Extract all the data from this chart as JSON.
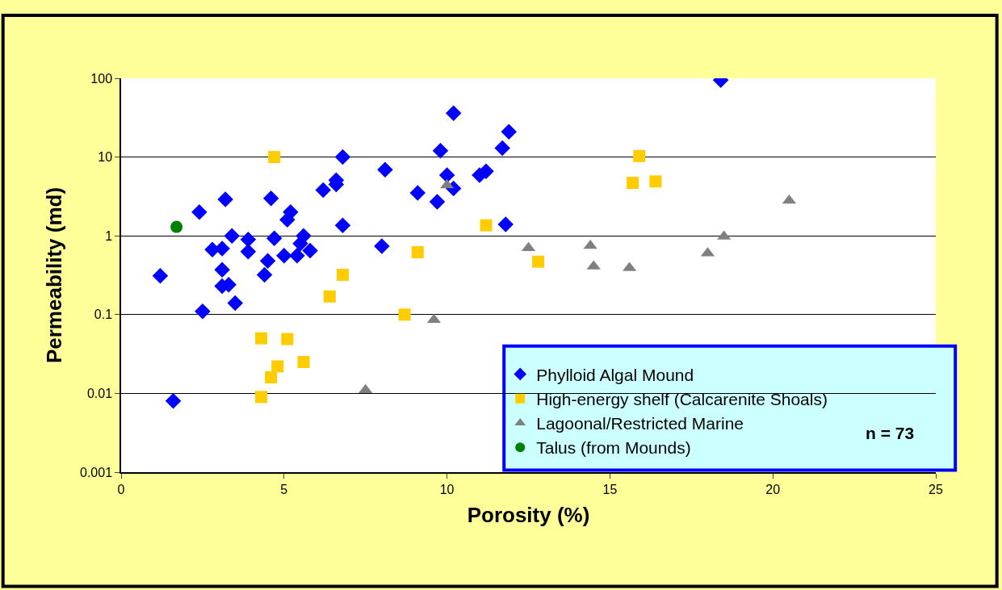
{
  "chart_data": {
    "type": "scatter",
    "xlabel": "Porosity (%)",
    "ylabel": "Permeability (md)",
    "log": "y",
    "xlim": [
      0,
      25
    ],
    "xticks": [
      0,
      5,
      10,
      15,
      20,
      25
    ],
    "ylim": [
      0.001,
      100
    ],
    "yticks": [
      0.001,
      0.01,
      0.1,
      1,
      10,
      100
    ],
    "grid": "y",
    "legend": "bottom right",
    "annotations": [
      "n = 73"
    ],
    "series": [
      {
        "name": "Phylloid Algal Mound",
        "color": "#0000ff",
        "marker": "diamond",
        "x": [
          1.2,
          1.6,
          2.4,
          2.5,
          2.8,
          3.1,
          3.2,
          3.1,
          3.1,
          3.3,
          3.4,
          3.5,
          3.9,
          3.9,
          4.4,
          4.5,
          4.6,
          4.7,
          5.0,
          5.1,
          5.2,
          5.4,
          5.5,
          5.6,
          5.8,
          6.2,
          6.6,
          6.6,
          6.8,
          6.8,
          8.1,
          8.0,
          9.1,
          9.7,
          9.8,
          10.0,
          10.2,
          10.2,
          11.0,
          11.2,
          11.7,
          11.9,
          11.8,
          18.4
        ],
        "values": [
          0.31,
          0.008,
          2.0,
          0.11,
          0.67,
          0.69,
          2.9,
          0.37,
          0.23,
          0.24,
          1.0,
          0.14,
          0.9,
          0.63,
          0.32,
          0.48,
          3.0,
          0.93,
          0.56,
          1.6,
          2.0,
          0.56,
          0.8,
          1.0,
          0.65,
          3.8,
          5.1,
          4.5,
          10,
          1.36,
          6.9,
          0.74,
          3.5,
          2.7,
          12,
          5.9,
          4.0,
          36,
          5.9,
          6.6,
          13,
          21,
          1.4,
          95
        ]
      },
      {
        "name": "High-energy shelf (Calcarenite Shoals)",
        "color": "#ffcc00",
        "marker": "square",
        "x": [
          4.7,
          4.3,
          5.1,
          4.8,
          4.6,
          4.3,
          5.6,
          6.4,
          6.8,
          8.7,
          9.1,
          11.2,
          12.8,
          15.9,
          15.7,
          16.4
        ],
        "values": [
          10,
          0.05,
          0.049,
          0.022,
          0.016,
          0.009,
          0.025,
          0.17,
          0.32,
          0.1,
          0.62,
          1.36,
          0.47,
          10.3,
          4.7,
          4.9
        ]
      },
      {
        "name": "Lagoonal/Restricted Marine",
        "color": "#808080",
        "marker": "triangle",
        "x": [
          7.5,
          9.6,
          10.0,
          12.5,
          14.4,
          14.5,
          15.6,
          18.0,
          18.5,
          20.5
        ],
        "values": [
          0.011,
          0.086,
          4.4,
          0.7,
          0.75,
          0.41,
          0.39,
          0.6,
          0.98,
          2.8
        ]
      },
      {
        "name": "Talus (from Mounds)",
        "color": "#008000",
        "marker": "circle",
        "x": [
          1.7
        ],
        "values": [
          1.3
        ]
      }
    ]
  }
}
